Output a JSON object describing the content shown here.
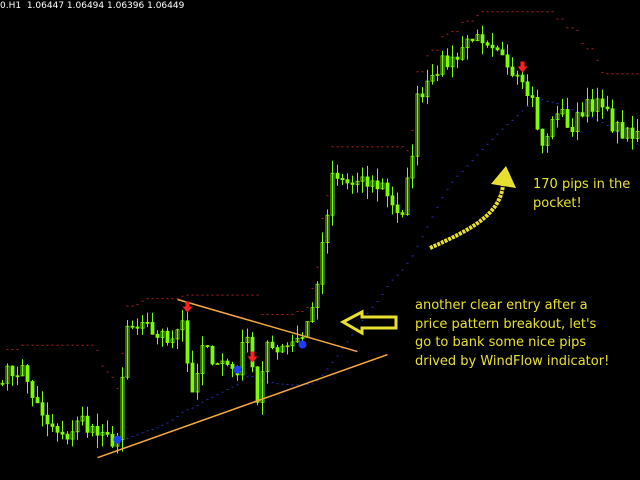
{
  "header": {
    "symbol_period": "0.H1",
    "open": "1.06447",
    "high": "1.06494",
    "low": "1.06396",
    "close": "1.06449"
  },
  "annotations": {
    "breakout_note": "another clear entry after a price pattern breakout, let's go to bank some nice pips drived by WindFlow indicator!",
    "profit_note": "170 pips in the pocket!"
  },
  "colors": {
    "background": "#000000",
    "candles": "#7CFC00",
    "sell_arrow": "#ff2020",
    "buy_dot": "#1e3cff",
    "trendline": "#f5a742",
    "annotation": "#e8e030",
    "stop_line": "#b02020",
    "trend_line_indicator": "#2030c0"
  },
  "chart_data": {
    "type": "candlestick",
    "ylim": [
      1.0405,
      1.0738
    ],
    "candle_count": 128,
    "close_waypoints": [
      [
        0,
        1.04781
      ],
      [
        4,
        1.04816
      ],
      [
        8,
        1.04469
      ],
      [
        12,
        1.0433
      ],
      [
        16,
        1.04469
      ],
      [
        20,
        1.0433
      ],
      [
        23,
        1.0433
      ],
      [
        25,
        1.05094
      ],
      [
        29,
        1.05094
      ],
      [
        33,
        1.05024
      ],
      [
        36,
        1.05163
      ],
      [
        38,
        1.04608
      ],
      [
        40,
        1.04955
      ],
      [
        43,
        1.04885
      ],
      [
        47,
        1.04816
      ],
      [
        49,
        1.05094
      ],
      [
        51,
        1.04608
      ],
      [
        53,
        1.04955
      ],
      [
        56,
        1.0499
      ],
      [
        60,
        1.05059
      ],
      [
        62,
        1.05232
      ],
      [
        64,
        1.05649
      ],
      [
        66,
        1.06135
      ],
      [
        70,
        1.061
      ],
      [
        76,
        1.061
      ],
      [
        80,
        1.05857
      ],
      [
        82,
        1.06343
      ],
      [
        83,
        1.0669
      ],
      [
        86,
        1.06898
      ],
      [
        90,
        1.06968
      ],
      [
        94,
        1.07141
      ],
      [
        96,
        1.07037
      ],
      [
        100,
        1.06968
      ],
      [
        104,
        1.06863
      ],
      [
        106,
        1.0669
      ],
      [
        108,
        1.06343
      ],
      [
        111,
        1.06621
      ],
      [
        114,
        1.06482
      ],
      [
        117,
        1.0669
      ],
      [
        120,
        1.06621
      ],
      [
        123,
        1.06482
      ],
      [
        126,
        1.06412
      ],
      [
        127,
        1.06447
      ]
    ],
    "trendlines": [
      {
        "from": [
          35,
          1.05302
        ],
        "to": [
          71,
          1.04941
        ]
      },
      {
        "from": [
          19,
          1.04205
        ],
        "to": [
          77,
          1.0492
        ]
      }
    ],
    "sell_signals": [
      [
        37,
        1.05232
      ],
      [
        50,
        1.04886
      ],
      [
        104,
        1.06898
      ]
    ],
    "buy_signals": [
      [
        23,
        1.0433
      ],
      [
        47,
        1.04816
      ],
      [
        60,
        1.0499
      ]
    ]
  }
}
